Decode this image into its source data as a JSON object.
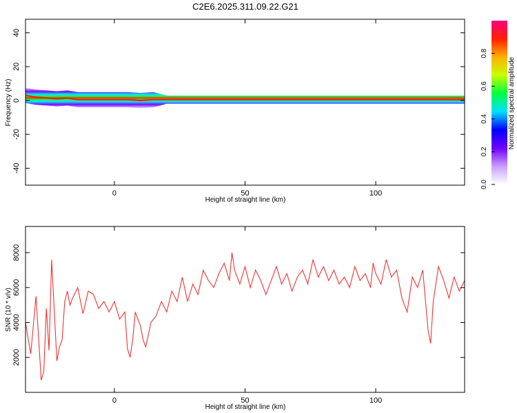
{
  "title": "C2E6.2025.311.09.22.G21",
  "chart_data": [
    {
      "type": "heatmap",
      "xlabel": "Height of straight line (km)",
      "ylabel": "Frequency (Hz)",
      "xlim": [
        -34,
        134
      ],
      "ylim": [
        -50,
        48
      ],
      "xticks": [
        0,
        50,
        100
      ],
      "yticks": [
        -40,
        -20,
        0,
        20,
        40
      ],
      "xtick_labels": [
        "0",
        "50",
        "100"
      ],
      "ytick_labels": [
        "-40",
        "-20",
        "0",
        "20",
        "40"
      ],
      "ridge": {
        "x": [
          -34,
          -30,
          -26,
          -22,
          -18,
          -14,
          -10,
          -5,
          0,
          5,
          10,
          15,
          20,
          40,
          60,
          80,
          100,
          120,
          134
        ],
        "y": [
          3,
          2,
          1.5,
          1,
          1.5,
          0.5,
          0.5,
          0.5,
          0.5,
          0.5,
          0,
          0.5,
          0.5,
          0.5,
          0.5,
          0.5,
          0.5,
          0.5,
          0.5
        ]
      },
      "colorbar": {
        "label": "Normalized spectral amplitude",
        "range": [
          0,
          1
        ],
        "ticks": [
          0.0,
          0.2,
          0.4,
          0.6,
          0.8
        ],
        "tick_labels": [
          "0.0",
          "0.2",
          "0.4",
          "0.6",
          "0.8"
        ],
        "colors": [
          "#ffffff",
          "#c8a0ff",
          "#7000ff",
          "#0000ff",
          "#00e0ff",
          "#00ff40",
          "#c8ff00",
          "#ffb000",
          "#ff2000",
          "#ff0080"
        ]
      }
    },
    {
      "type": "line",
      "xlabel": "Height of straight line (km)",
      "ylabel": "SNR (10 * v/v)",
      "xlim": [
        -34,
        134
      ],
      "ylim": [
        0,
        9500
      ],
      "xticks": [
        0,
        50,
        100
      ],
      "yticks": [
        2000,
        4000,
        6000,
        8000
      ],
      "xtick_labels": [
        "0",
        "50",
        "100"
      ],
      "ytick_labels": [
        "2000",
        "4000",
        "6000",
        "8000"
      ],
      "color": "#ee3333",
      "series": [
        {
          "x": [
            -34,
            -32,
            -30,
            -28,
            -27,
            -26,
            -25,
            -24,
            -22,
            -21,
            -20,
            -19,
            -18,
            -17,
            -16,
            -14,
            -12,
            -10,
            -8,
            -6,
            -4,
            -2,
            0,
            2,
            4,
            5,
            6,
            7,
            8,
            10,
            11,
            12,
            14,
            16,
            18,
            20,
            22,
            24,
            26,
            28,
            30,
            32,
            34,
            36,
            38,
            40,
            42,
            44,
            45,
            46,
            48,
            50,
            52,
            54,
            56,
            58,
            60,
            62,
            64,
            66,
            68,
            70,
            72,
            74,
            76,
            78,
            80,
            82,
            84,
            86,
            88,
            90,
            92,
            94,
            96,
            98,
            99,
            100,
            102,
            104,
            106,
            108,
            110,
            112,
            114,
            116,
            118,
            120,
            121,
            122,
            124,
            126,
            128,
            130,
            132,
            134
          ],
          "y": [
            4000,
            2200,
            5500,
            700,
            1200,
            4800,
            2400,
            7600,
            1800,
            2600,
            3000,
            5200,
            5800,
            5000,
            5400,
            6000,
            4500,
            5800,
            5600,
            4800,
            5200,
            4600,
            5200,
            4200,
            4600,
            2500,
            2000,
            3000,
            4600,
            3800,
            3000,
            2600,
            4000,
            4400,
            5200,
            4600,
            5800,
            5200,
            6600,
            5200,
            6200,
            5600,
            7000,
            6400,
            6000,
            6800,
            7400,
            6400,
            8000,
            7000,
            6200,
            7200,
            6000,
            7000,
            6400,
            5600,
            6400,
            7200,
            6200,
            6800,
            5800,
            6600,
            7000,
            6200,
            7600,
            6600,
            7200,
            6400,
            7000,
            6200,
            6600,
            6000,
            7200,
            6400,
            6800,
            6000,
            7400,
            6800,
            6200,
            7600,
            6600,
            7000,
            5400,
            4600,
            6600,
            6000,
            7000,
            3600,
            2800,
            5200,
            7200,
            6400,
            5400,
            6600,
            5800,
            6400
          ]
        }
      ]
    }
  ]
}
